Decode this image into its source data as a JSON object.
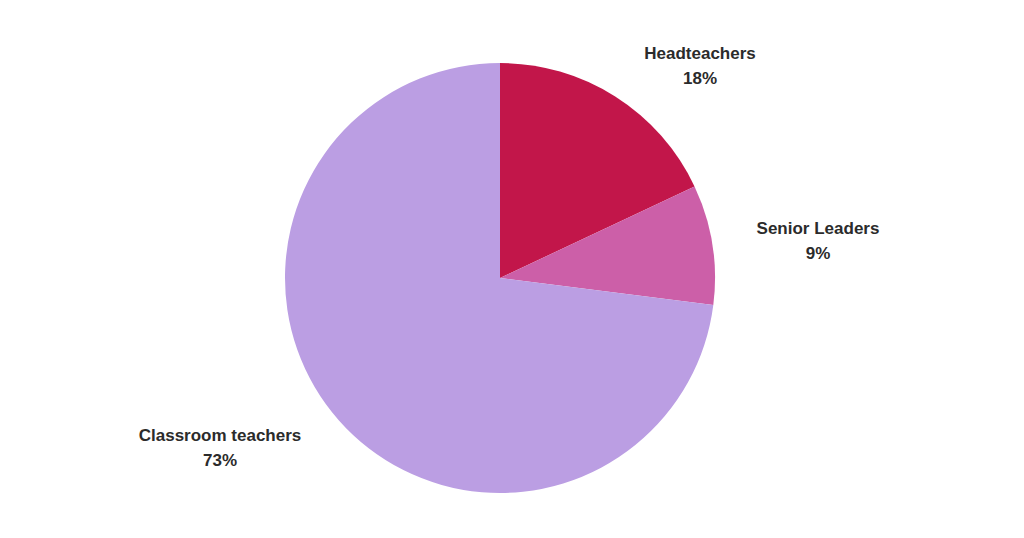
{
  "chart_data": {
    "type": "pie",
    "categories": [
      "Headteachers",
      "Senior Leaders",
      "Classroom teachers"
    ],
    "values": [
      18,
      9,
      73
    ],
    "value_labels": [
      "18%",
      "9%",
      "73%"
    ],
    "colors": [
      "#c2164a",
      "#cc5fa8",
      "#bb9ee3"
    ],
    "data_labels": true
  }
}
